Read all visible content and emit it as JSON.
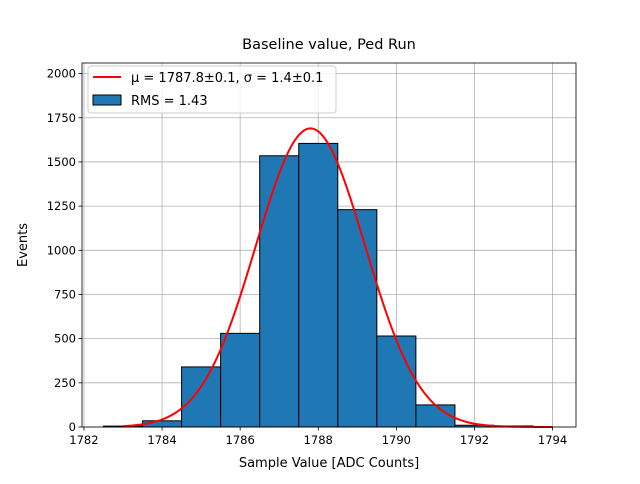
{
  "chart_data": {
    "type": "bar",
    "title": "Baseline value, Ped Run",
    "xlabel": "Sample Value [ADC Counts]",
    "ylabel": "Events",
    "xlim": [
      1781.95,
      1794.6
    ],
    "ylim": [
      0,
      2060
    ],
    "grid": true,
    "legend_position": "top-left",
    "xticks": [
      1782,
      1784,
      1786,
      1788,
      1790,
      1792,
      1794
    ],
    "yticks": [
      0,
      250,
      500,
      750,
      1000,
      1250,
      1500,
      1750,
      2000
    ],
    "histogram": {
      "name": "RMS = 1.43",
      "bin_edges": [
        1782.5,
        1783.5,
        1784.5,
        1785.5,
        1786.5,
        1787.5,
        1788.5,
        1789.5,
        1790.5,
        1791.5,
        1792.5,
        1793.5
      ],
      "values": [
        5,
        35,
        340,
        530,
        1535,
        1605,
        1230,
        515,
        125,
        10,
        6
      ],
      "color": "#1f77b4"
    },
    "fit": {
      "name": "μ = 1787.8±0.1, σ = 1.4±0.1",
      "type": "gaussian",
      "amplitude": 1690,
      "mu": 1787.8,
      "sigma": 1.4,
      "x_range": [
        1783,
        1794
      ],
      "color": "#ff0000"
    },
    "legend": [
      "μ = 1787.8±0.1, σ = 1.4±0.1",
      "RMS = 1.43"
    ]
  }
}
